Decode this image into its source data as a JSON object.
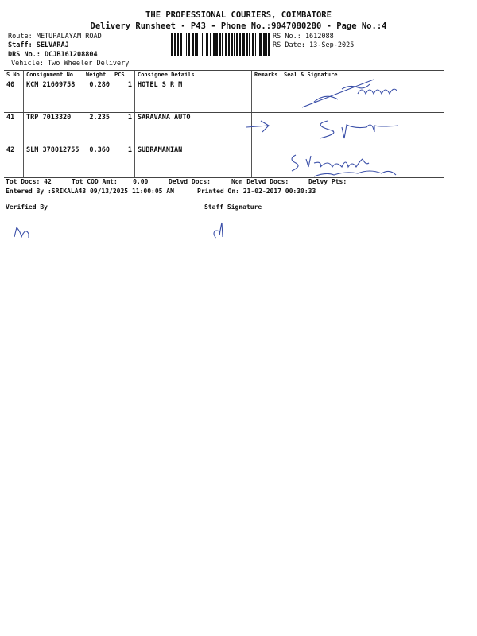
{
  "header": {
    "company": "THE PROFESSIONAL COURIERS, COIMBATORE",
    "subtitle": "Delivery Runsheet - P43 - Phone No.:9047080280 - Page No.:4"
  },
  "info": {
    "route": "Route: METUPALAYAM ROAD",
    "staff": "Staff: SELVARAJ",
    "drs": "DRS No.: DCJB161208804",
    "vehicle": "Vehicle: Two Wheeler Delivery",
    "rs_no": "RS No.: 1612088",
    "rs_date": "RS Date: 13-Sep-2025"
  },
  "table": {
    "columns": [
      "S No",
      "Consignment No",
      "Weight",
      "PCS",
      "Consignee Details",
      "Remarks",
      "Seal & Signature"
    ],
    "rows": [
      {
        "sno": "40",
        "consignment": "KCM 21609758",
        "weight": "0.280",
        "pcs": "1",
        "consignee": "HOTEL S R M",
        "remarks": "",
        "signature": "handwritten signature with phone number"
      },
      {
        "sno": "41",
        "consignment": "TRP 7013320",
        "weight": "2.235",
        "pcs": "1",
        "consignee": "SARAVANA AUTO",
        "remarks": "→ (handwritten arrow)",
        "signature": "S.Rengu"
      },
      {
        "sno": "42",
        "consignment": "SLM 378012755",
        "weight": "0.360",
        "pcs": "1",
        "consignee": "SUBRAMANIAN",
        "remarks": "",
        "signature": "S.Vijayalakshmi 9894643616"
      }
    ]
  },
  "totals": {
    "tot_docs": "Tot Docs:  42",
    "tot_cod": "Tot COD Amt:    0.00",
    "delvd": "Delvd Docs:",
    "non_delvd": "Non Delvd Docs:",
    "delvy_pts": "Delvy Pts:"
  },
  "entered": "Entered By :SRIKALA43 09/13/2025 11:00:05 AM",
  "printed": "Printed On: 21-02-2017 00:30:33",
  "footer": {
    "verified": "Verified By",
    "staff_sig": "Staff Signature"
  },
  "ink_color": "#3a4fa8"
}
